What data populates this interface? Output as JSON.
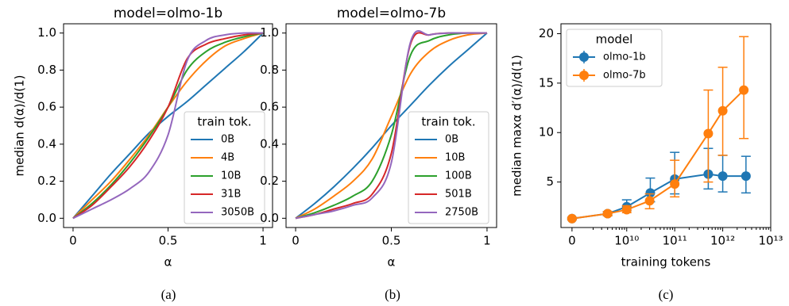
{
  "chart_data": [
    {
      "type": "line",
      "title": "model=olmo-1b",
      "x_label": "α",
      "y_label": "median d(α)/d(1)",
      "caption": "(a)",
      "legend_title": "train tok.",
      "legend_position": "lower right",
      "x": [
        0,
        0.1,
        0.2,
        0.3,
        0.4,
        0.5,
        0.6,
        0.7,
        0.8,
        0.9,
        1
      ],
      "series": [
        {
          "name": "0B",
          "color": "#1f77b4",
          "values": [
            0,
            0.12,
            0.24,
            0.35,
            0.46,
            0.55,
            0.63,
            0.72,
            0.81,
            0.9,
            1
          ]
        },
        {
          "name": "4B",
          "color": "#ff7f0e",
          "values": [
            0,
            0.1,
            0.2,
            0.32,
            0.45,
            0.6,
            0.74,
            0.85,
            0.93,
            0.97,
            1
          ]
        },
        {
          "name": "10B",
          "color": "#2ca02c",
          "values": [
            0,
            0.08,
            0.18,
            0.3,
            0.44,
            0.6,
            0.8,
            0.9,
            0.95,
            0.98,
            1
          ]
        },
        {
          "name": "31B",
          "color": "#d62728",
          "values": [
            0,
            0.07,
            0.17,
            0.28,
            0.42,
            0.6,
            0.86,
            0.94,
            0.97,
            0.99,
            1
          ]
        },
        {
          "name": "3050B",
          "color": "#9467bd",
          "values": [
            0,
            0.05,
            0.1,
            0.16,
            0.25,
            0.45,
            0.85,
            0.96,
            0.99,
            1,
            1
          ]
        }
      ],
      "xlim": [
        -0.05,
        1.05
      ],
      "xticks": [
        0,
        0.5,
        1
      ],
      "ylim": [
        -0.05,
        1.05
      ],
      "yticks": [
        {
          "value": 0,
          "label": "0.0"
        },
        0.2,
        0.4,
        0.6,
        0.8,
        {
          "value": 1,
          "label": "1.0"
        }
      ]
    },
    {
      "type": "line",
      "title": "model=olmo-7b",
      "x_label": "α",
      "caption": "(b)",
      "legend_title": "train tok.",
      "legend_position": "lower right",
      "x": [
        0,
        0.1,
        0.2,
        0.3,
        0.4,
        0.5,
        0.6,
        0.7,
        0.8,
        0.9,
        1
      ],
      "series": [
        {
          "name": "0B",
          "color": "#1f77b4",
          "values": [
            0,
            0.08,
            0.17,
            0.27,
            0.38,
            0.5,
            0.61,
            0.72,
            0.82,
            0.91,
            1
          ]
        },
        {
          "name": "10B",
          "color": "#ff7f0e",
          "values": [
            0,
            0.05,
            0.12,
            0.2,
            0.32,
            0.55,
            0.78,
            0.9,
            0.96,
            0.99,
            1
          ]
        },
        {
          "name": "100B",
          "color": "#2ca02c",
          "values": [
            0,
            0.03,
            0.07,
            0.12,
            0.2,
            0.45,
            0.88,
            0.96,
            0.99,
            1,
            1
          ]
        },
        {
          "name": "501B",
          "color": "#d62728",
          "values": [
            0,
            0.02,
            0.05,
            0.08,
            0.13,
            0.35,
            0.94,
            0.99,
            1,
            1,
            1
          ]
        },
        {
          "name": "2750B",
          "color": "#9467bd",
          "values": [
            0,
            0.02,
            0.04,
            0.07,
            0.11,
            0.3,
            0.95,
            0.99,
            1,
            1,
            1
          ]
        }
      ],
      "xlim": [
        -0.05,
        1.05
      ],
      "xticks": [
        0,
        0.5,
        1
      ],
      "ylim": [
        -0.05,
        1.05
      ],
      "yticks": [
        {
          "value": 0,
          "label": "0.0"
        },
        0.2,
        0.4,
        0.6,
        0.8,
        {
          "value": 1,
          "label": "1.0"
        }
      ]
    },
    {
      "type": "errorbar",
      "x_label": "training tokens",
      "y_label": "median maxα d′(α)/d(1)",
      "caption": "(c)",
      "legend_title": "model",
      "legend_position": "upper left",
      "xscale": "symlog",
      "series": [
        {
          "name": "olmo-1b",
          "color": "#1f77b4",
          "x": [
            0,
            4000000000,
            10000000000,
            31000000000,
            100000000000,
            500000000000,
            1000000000000,
            3050000000000
          ],
          "values": [
            1.3,
            1.8,
            2.5,
            3.9,
            5.3,
            5.8,
            5.6,
            5.6
          ],
          "lower": [
            1.2,
            1.6,
            2.1,
            3.0,
            3.8,
            4.3,
            4.0,
            3.9
          ],
          "upper": [
            1.4,
            2.0,
            3.2,
            5.4,
            8.0,
            8.4,
            7.7,
            7.6
          ]
        },
        {
          "name": "olmo-7b",
          "color": "#ff7f0e",
          "x": [
            0,
            4000000000,
            10000000000,
            30000000000,
            100000000000,
            500000000000,
            1000000000000,
            2750000000000
          ],
          "values": [
            1.3,
            1.8,
            2.2,
            3.1,
            4.8,
            9.9,
            12.2,
            14.3
          ],
          "lower": [
            1.2,
            1.6,
            1.9,
            2.3,
            3.5,
            5.0,
            7.7,
            9.4
          ],
          "upper": [
            1.4,
            2.0,
            2.6,
            3.8,
            7.2,
            14.3,
            16.6,
            19.7
          ]
        }
      ],
      "xlim": [
        0,
        10000000000000
      ],
      "xticks": [
        0,
        {
          "value": 10000000000,
          "label": "10¹⁰"
        },
        {
          "value": 100000000000,
          "label": "10¹¹"
        },
        {
          "value": 1000000000000,
          "label": "10¹²"
        },
        {
          "value": 10000000000000,
          "label": "10¹³"
        }
      ],
      "ylim": [
        0.4,
        21
      ],
      "yticks": [
        5,
        10,
        15,
        20
      ]
    }
  ]
}
